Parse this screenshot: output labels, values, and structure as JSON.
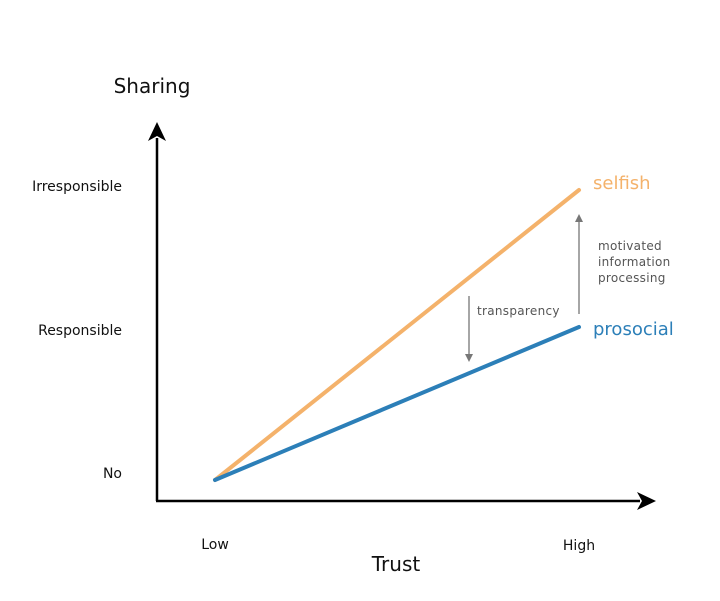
{
  "y_axis": {
    "title": "Sharing",
    "ticks": [
      "Irresponsible",
      "Responsible",
      "No"
    ]
  },
  "x_axis": {
    "title": "Trust",
    "ticks": [
      "Low",
      "High"
    ]
  },
  "series": {
    "selfish": {
      "label": "selfish",
      "color": "#f4b26b"
    },
    "prosocial": {
      "label": "prosocial",
      "color": "#2c7fb8"
    }
  },
  "annotations": {
    "transparency": "transparency",
    "motivated": [
      "motivated",
      "information",
      "processing"
    ]
  },
  "colors": {
    "axis": "#000000",
    "annotation_arrow": "#777777"
  }
}
